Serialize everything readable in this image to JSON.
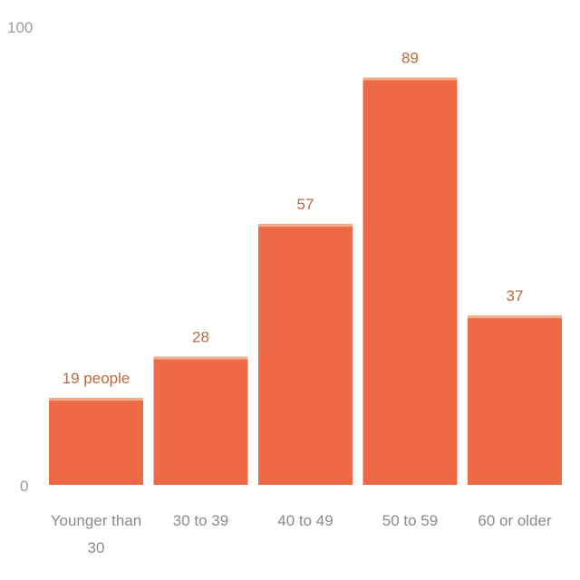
{
  "chart_data": {
    "type": "bar",
    "categories": [
      "Younger than 30",
      "30 to 39",
      "40 to 49",
      "50 to 59",
      "60 or older"
    ],
    "values": [
      19,
      28,
      57,
      89,
      37
    ],
    "data_labels": [
      "19 people",
      "28",
      "57",
      "89",
      "37"
    ],
    "ylim": [
      0,
      100
    ],
    "yticks": [
      "0",
      "100"
    ],
    "bar_color": "#ee6a47",
    "bar_top_color": "#f2b08a",
    "label_color": "#b86a3e",
    "grid": false
  }
}
